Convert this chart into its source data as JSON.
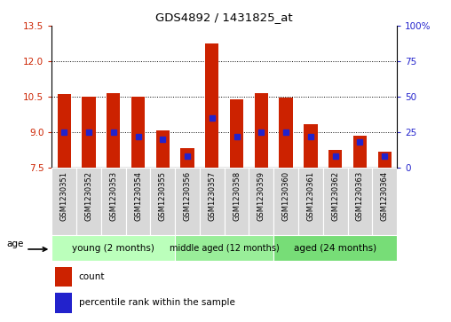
{
  "title": "GDS4892 / 1431825_at",
  "samples": [
    "GSM1230351",
    "GSM1230352",
    "GSM1230353",
    "GSM1230354",
    "GSM1230355",
    "GSM1230356",
    "GSM1230357",
    "GSM1230358",
    "GSM1230359",
    "GSM1230360",
    "GSM1230361",
    "GSM1230362",
    "GSM1230363",
    "GSM1230364"
  ],
  "count_values": [
    10.6,
    10.5,
    10.65,
    10.5,
    9.05,
    8.3,
    12.75,
    10.4,
    10.65,
    10.45,
    9.35,
    8.25,
    8.85,
    8.15
  ],
  "percentile_values": [
    25,
    25,
    25,
    22,
    20,
    8,
    35,
    22,
    25,
    25,
    22,
    8,
    18,
    8
  ],
  "ymin": 7.5,
  "ymax": 13.5,
  "y_ticks_left": [
    7.5,
    9.0,
    10.5,
    12.0,
    13.5
  ],
  "y_ticks_right": [
    0,
    25,
    50,
    75,
    100
  ],
  "bar_color": "#cc2200",
  "dot_color": "#2222cc",
  "group_labels": [
    "young (2 months)",
    "middle aged (12 months)",
    "aged (24 months)"
  ],
  "group_ranges": [
    [
      0,
      4
    ],
    [
      5,
      8
    ],
    [
      9,
      13
    ]
  ],
  "group_colors_light": [
    "#bbffbb",
    "#99ee99",
    "#77dd77"
  ],
  "label_color_left": "#cc2200",
  "label_color_right": "#2222cc",
  "legend_count_label": "count",
  "legend_percentile_label": "percentile rank within the sample",
  "age_label": "age"
}
